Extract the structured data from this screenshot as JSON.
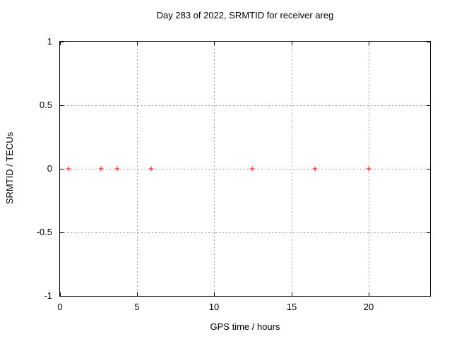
{
  "chart_data": {
    "type": "scatter",
    "title": "Day 283 of 2022, SRMTID for receiver areg",
    "xlabel": "GPS time / hours",
    "ylabel": "SRMTID / TECUs",
    "xlim": [
      0,
      24
    ],
    "ylim": [
      -1,
      1
    ],
    "xticks": [
      0,
      5,
      10,
      15,
      20
    ],
    "yticks": [
      1,
      0.5,
      0,
      -0.5,
      -1
    ],
    "grid": true,
    "legend": false,
    "colors": {
      "marker": "#ff0000",
      "grid": "#a0a0a0",
      "axis": "#000000",
      "background": "#ffffff"
    },
    "series": [
      {
        "marker": "plus",
        "color": "#ff0000",
        "x": [
          0.55,
          2.65,
          3.7,
          5.9,
          12.45,
          16.55,
          20.0
        ],
        "y": [
          0,
          0,
          0,
          0,
          0,
          0,
          0
        ]
      }
    ]
  }
}
